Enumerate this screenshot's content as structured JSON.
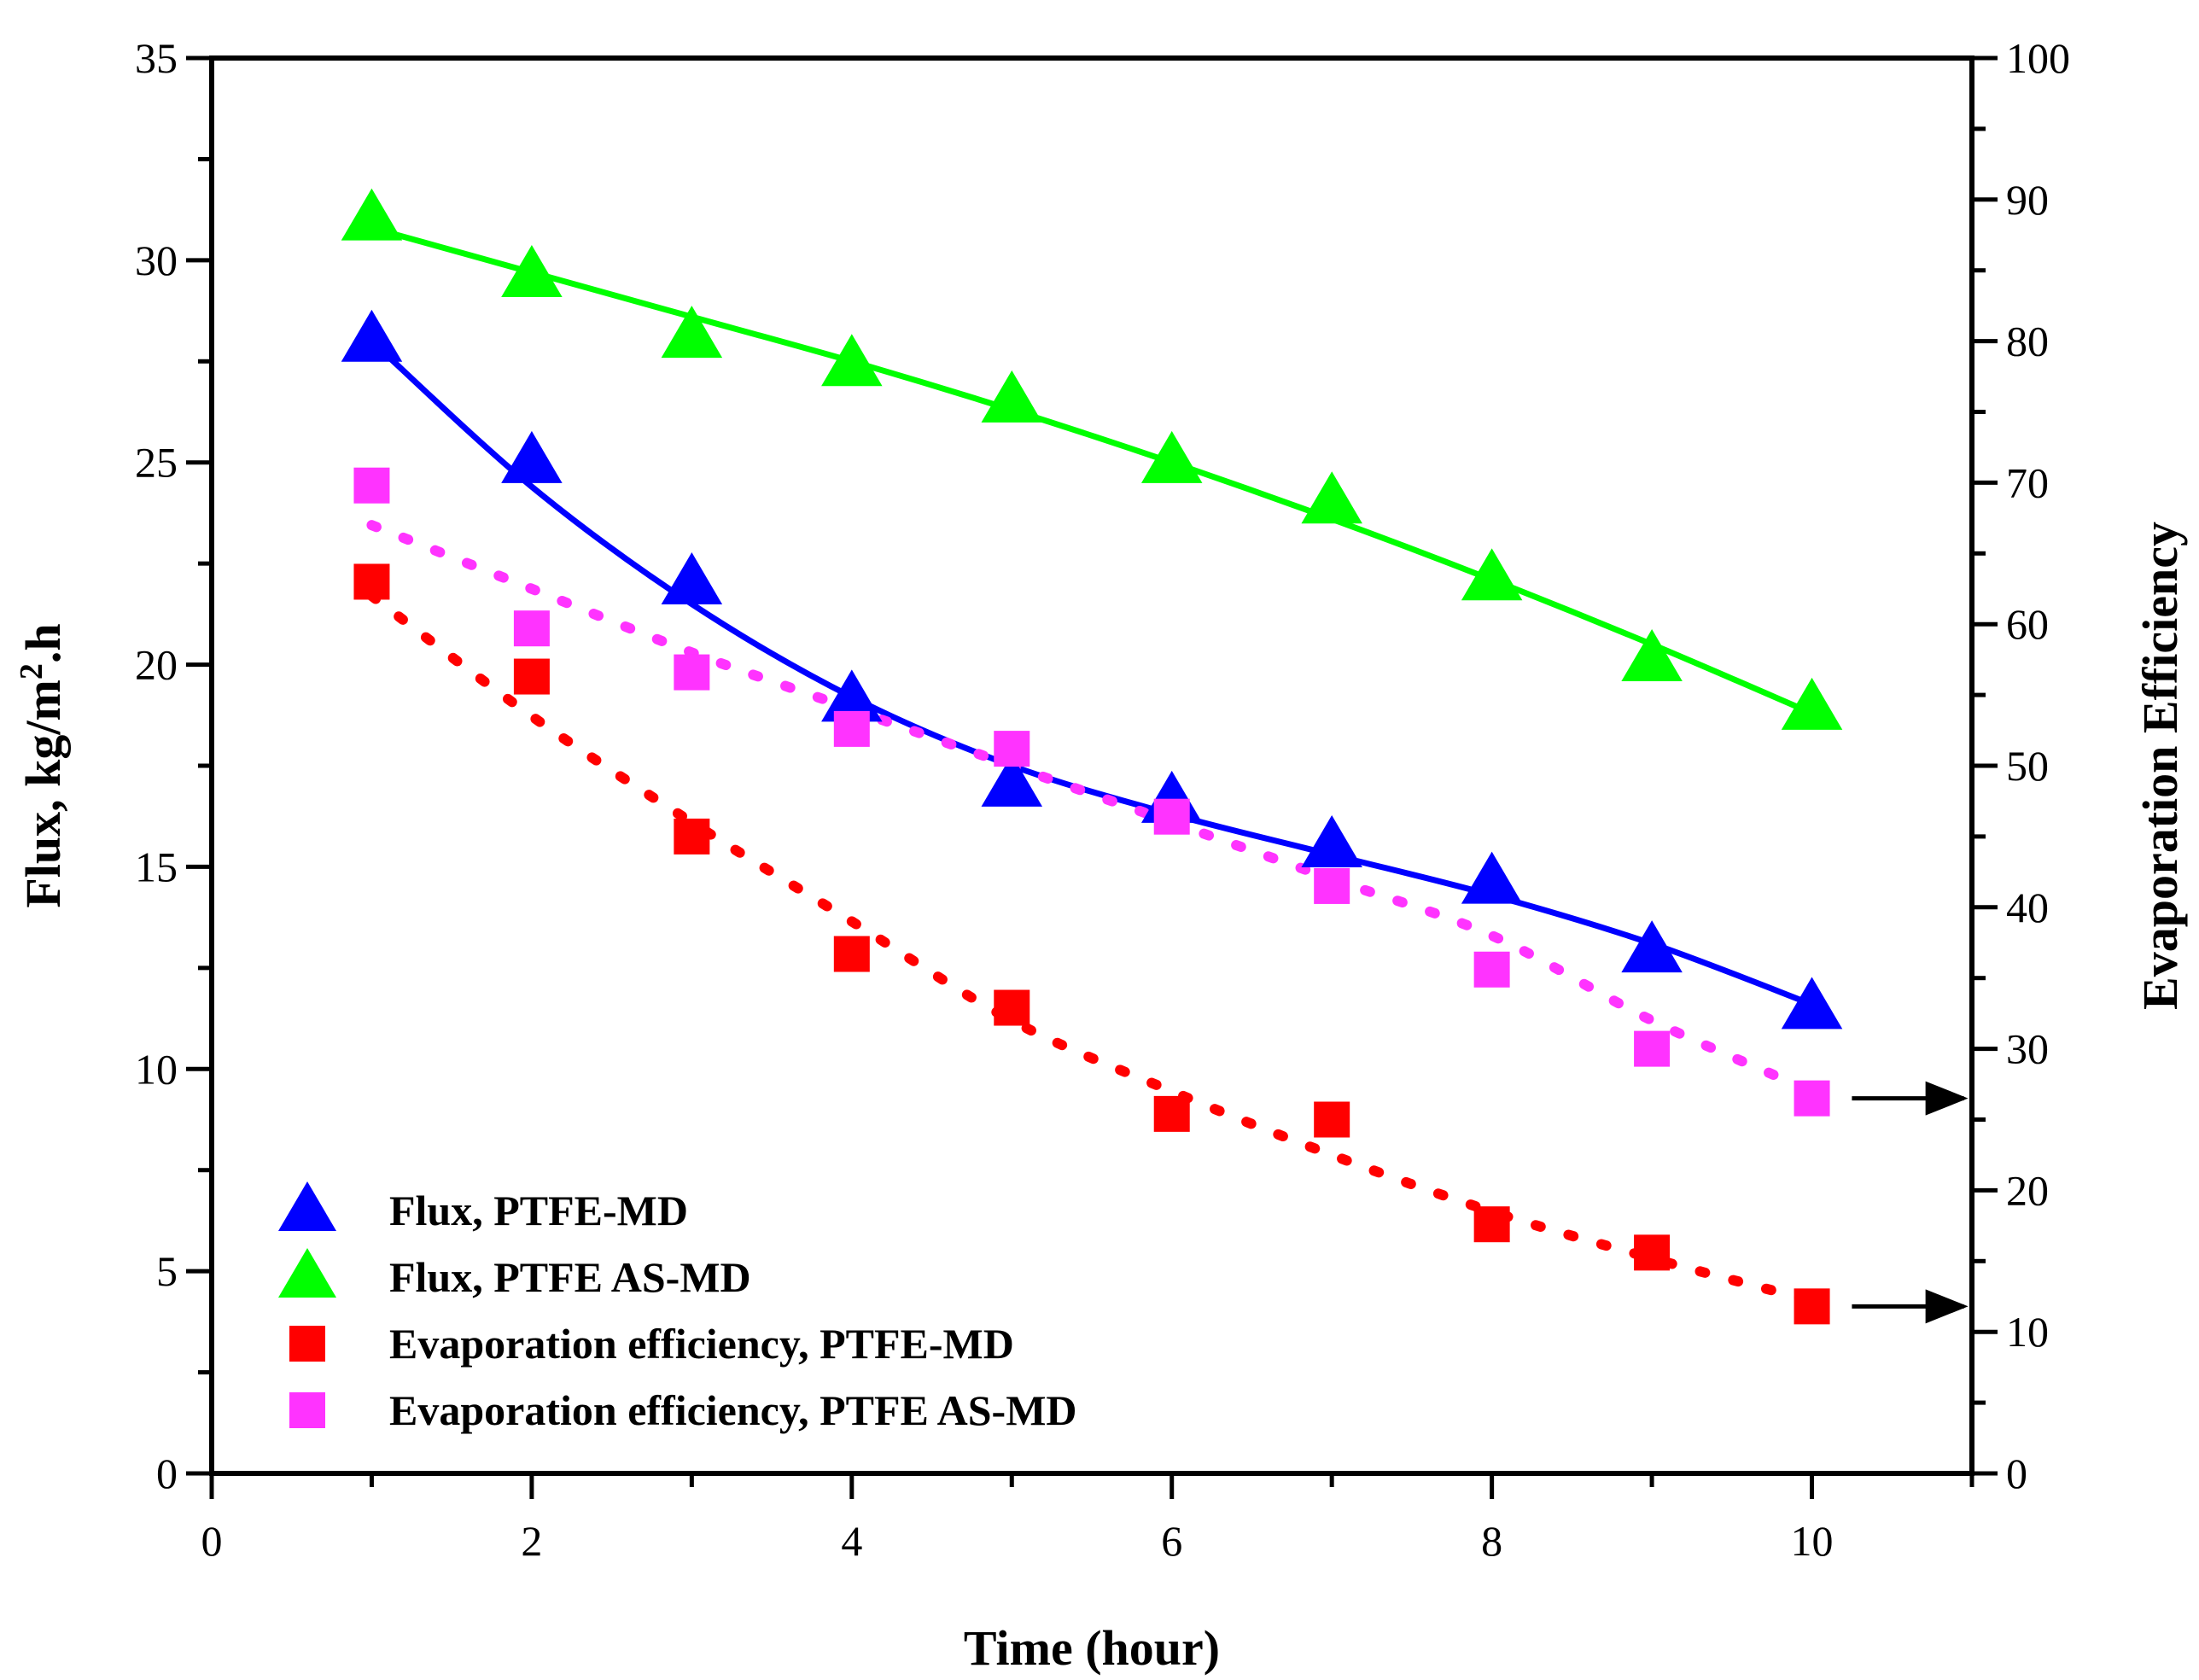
{
  "chart_data": {
    "type": "scatter",
    "xlabel": "Time (hour)",
    "ylabel_parts": {
      "pre": "Flux, kg/m",
      "sup": "2",
      "post": ".h"
    },
    "y2label": "Evaporation Efficiency",
    "xlim": [
      0,
      11
    ],
    "ylim": [
      0,
      35
    ],
    "y2lim": [
      0,
      100
    ],
    "xticks": [
      "0",
      "2",
      "4",
      "6",
      "8",
      "10"
    ],
    "yticks": [
      "0",
      "5",
      "10",
      "15",
      "20",
      "25",
      "30",
      "35"
    ],
    "y2ticks": [
      "0",
      "10",
      "20",
      "30",
      "40",
      "50",
      "60",
      "70",
      "80",
      "90",
      "100"
    ],
    "legend_position": "bottom-left",
    "series": [
      {
        "name": "Flux, PTFE-MD",
        "axis": "left",
        "marker": "triangle",
        "color": "#0000FF",
        "fit_style": "solid",
        "x": [
          1,
          2,
          3,
          4,
          5,
          6,
          7,
          8,
          9,
          10
        ],
        "values": [
          28.0,
          25.0,
          22.0,
          19.1,
          17.0,
          16.6,
          15.5,
          14.6,
          12.9,
          11.5
        ],
        "fit": [
          28.0,
          24.4,
          21.5,
          19.2,
          17.5,
          16.3,
          15.3,
          14.3,
          13.1,
          11.6
        ]
      },
      {
        "name": "Flux, PTFE AS-MD",
        "axis": "left",
        "marker": "triangle",
        "color": "#00FF00",
        "fit_style": "solid",
        "x": [
          1,
          2,
          3,
          4,
          5,
          6,
          7,
          8,
          9,
          10
        ],
        "values": [
          31.0,
          29.6,
          28.1,
          27.4,
          26.5,
          25.0,
          24.0,
          22.1,
          20.1,
          18.9
        ],
        "fit": [
          30.8,
          29.7,
          28.6,
          27.5,
          26.3,
          25.0,
          23.6,
          22.1,
          20.5,
          18.8
        ]
      },
      {
        "name": "Evaporation efficiency, PTFE-MD",
        "axis": "right",
        "marker": "square",
        "color": "#FF0000",
        "fit_style": "dotted",
        "x": [
          1,
          2,
          3,
          4,
          5,
          6,
          7,
          8,
          9,
          10
        ],
        "values": [
          63.0,
          56.3,
          45.0,
          36.7,
          32.9,
          25.4,
          25.0,
          17.6,
          15.6,
          11.8
        ],
        "fit": [
          62.0,
          53.5,
          46.0,
          39.0,
          32.0,
          27.0,
          22.5,
          18.5,
          15.2,
          12.2
        ]
      },
      {
        "name": "Evaporation efficiency, PTFE AS-MD",
        "axis": "right",
        "marker": "square",
        "color": "#FF33FF",
        "fit_style": "dotted",
        "x": [
          1,
          2,
          3,
          4,
          5,
          6,
          7,
          8,
          9,
          10
        ],
        "values": [
          69.8,
          59.7,
          56.6,
          52.6,
          51.2,
          46.4,
          41.5,
          35.6,
          30.0,
          26.5
        ],
        "fit": [
          67.0,
          62.5,
          58.0,
          54.0,
          50.0,
          46.0,
          42.0,
          38.0,
          32.0,
          27.0
        ]
      }
    ],
    "annotations": [
      {
        "type": "arrow",
        "series": 3,
        "from_x": 10.25,
        "to_x": 10.95,
        "y2": 26.5
      },
      {
        "type": "arrow",
        "series": 2,
        "from_x": 10.25,
        "to_x": 10.95,
        "y2": 11.8
      }
    ]
  }
}
